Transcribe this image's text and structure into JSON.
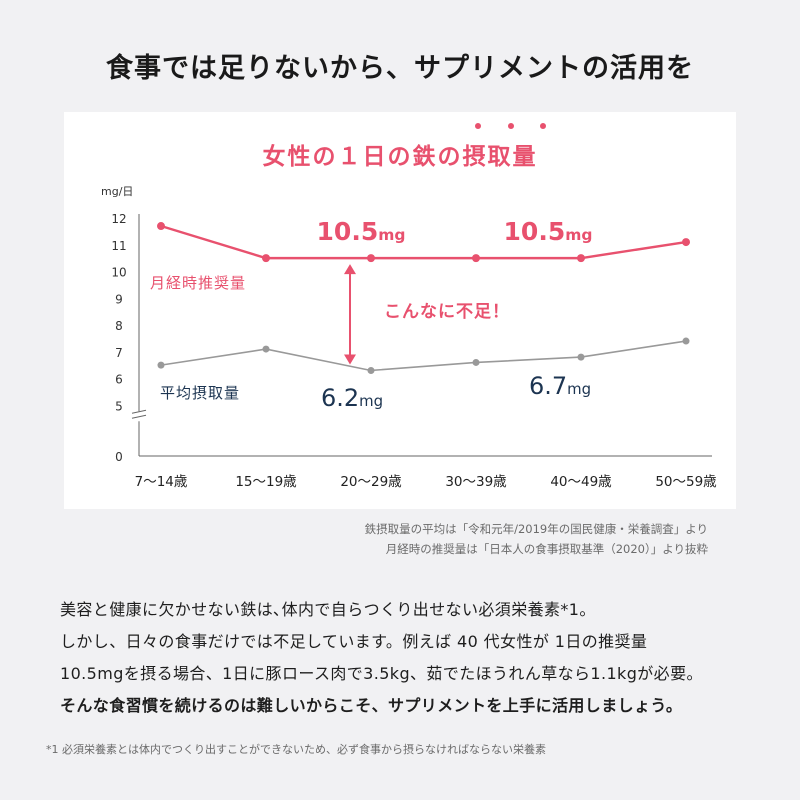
{
  "headline": "食事では足りないから、サプリメントの活用を",
  "chart_data": {
    "type": "line",
    "title": "女性の１日の鉄の摂取量",
    "y_unit": "mg/日",
    "y_ticks": [
      "12",
      "11",
      "10",
      "9",
      "8",
      "7",
      "6",
      "5",
      "0"
    ],
    "ylim": [
      0,
      12
    ],
    "y_axis_break": [
      0,
      5
    ],
    "categories": [
      "7〜14歳",
      "15〜19歳",
      "20〜29歳",
      "30〜39歳",
      "40〜49歳",
      "50〜59歳"
    ],
    "series": [
      {
        "name": "月経時推奨量",
        "color": "#e8516e",
        "values": [
          11.7,
          10.5,
          10.5,
          10.5,
          10.5,
          11.1
        ]
      },
      {
        "name": "平均摂取量",
        "color": "#999999",
        "values": [
          6.5,
          7.1,
          6.3,
          6.6,
          6.8,
          7.4
        ]
      }
    ],
    "annotations": {
      "recommended_left": {
        "number": "10.5",
        "unit": "mg"
      },
      "recommended_right": {
        "number": "10.5",
        "unit": "mg"
      },
      "average_left": {
        "number": "6.2",
        "unit": "mg"
      },
      "average_right": {
        "number": "6.7",
        "unit": "mg"
      },
      "gap": "こんなに不足！"
    },
    "colors": {
      "accent": "#e8516e",
      "navy": "#1c3451",
      "gray": "#999999"
    }
  },
  "source_lines": [
    "鉄摂取量の平均は「令和元年/2019年の国民健康・栄養調査」より",
    "月経時の推奨量は「日本人の食事摂取基準（2020）」より抜粋"
  ],
  "body": {
    "line1": "美容と健康に欠かせない鉄は､体内で自らつくり出せない必須栄養素*1。",
    "line2": "しかし、日々の食事だけでは不足しています。例えば 40 代女性が 1日の推奨量",
    "line3": "10.5mgを摂る場合、1日に豚ロース肉で3.5kg、茹でたほうれん草なら1.1kgが必要。",
    "line4": "そんな食習慣を続けるのは難しいからこそ、サプリメントを上手に活用しましょう。"
  },
  "footnote": "*1 必須栄養素とは体内でつくり出すことができないため、必ず食事から摂らなければならない栄養素"
}
